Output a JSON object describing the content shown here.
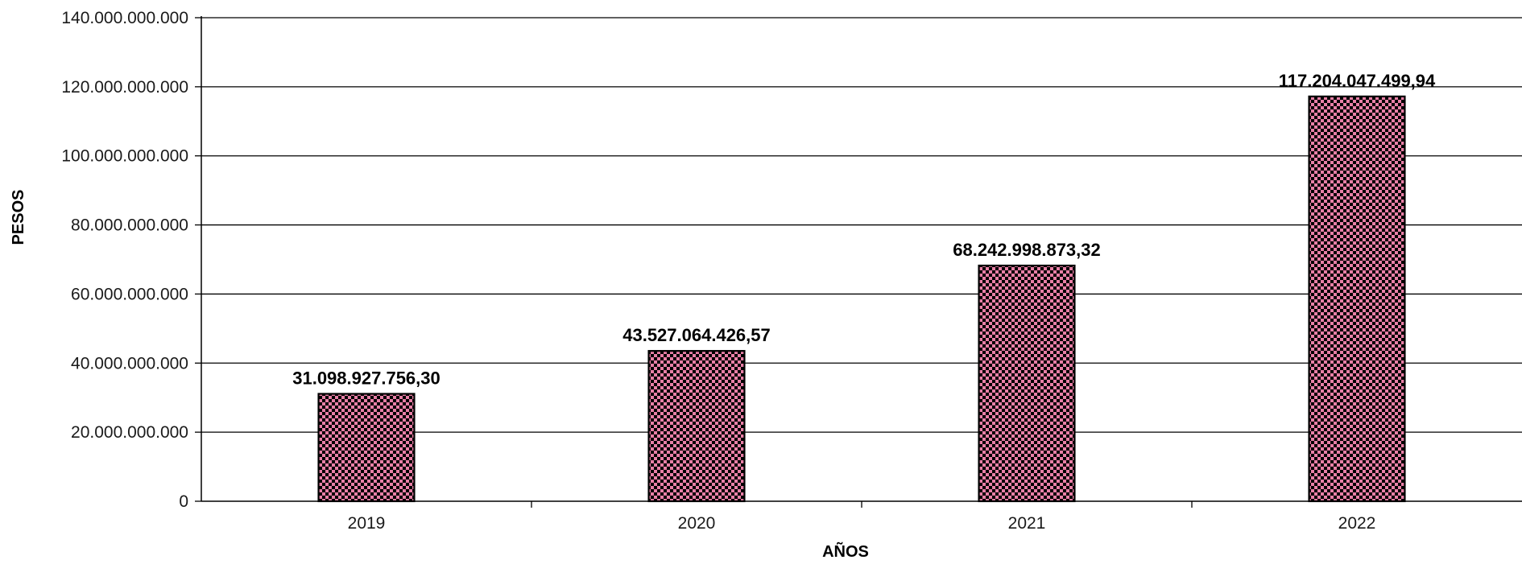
{
  "chart_data": {
    "type": "bar",
    "title": "",
    "xlabel": "AÑOS",
    "ylabel": "PESOS",
    "categories": [
      "2019",
      "2020",
      "2021",
      "2022"
    ],
    "values": [
      31098927756.3,
      43527064426.57,
      68242998873.32,
      117204047499.94
    ],
    "value_labels": [
      "31.098.927.756,30",
      "43.527.064.426,57",
      "68.242.998.873,32",
      "117.204.047.499,94"
    ],
    "ylim": [
      0,
      140000000000
    ],
    "y_ticks": [
      0,
      20000000000,
      40000000000,
      60000000000,
      80000000000,
      100000000000,
      120000000000,
      140000000000
    ],
    "y_tick_labels": [
      "0",
      "20.000.000.000",
      "40.000.000.000",
      "60.000.000.000",
      "80.000.000.000",
      "100.000.000.000",
      "120.000.000.000",
      "140.000.000.000"
    ],
    "grid": true,
    "bar_color": "#e87fa6",
    "bar_pattern_color": "#000000",
    "bar_pattern": "checkerboard",
    "grid_color": "#000000"
  }
}
